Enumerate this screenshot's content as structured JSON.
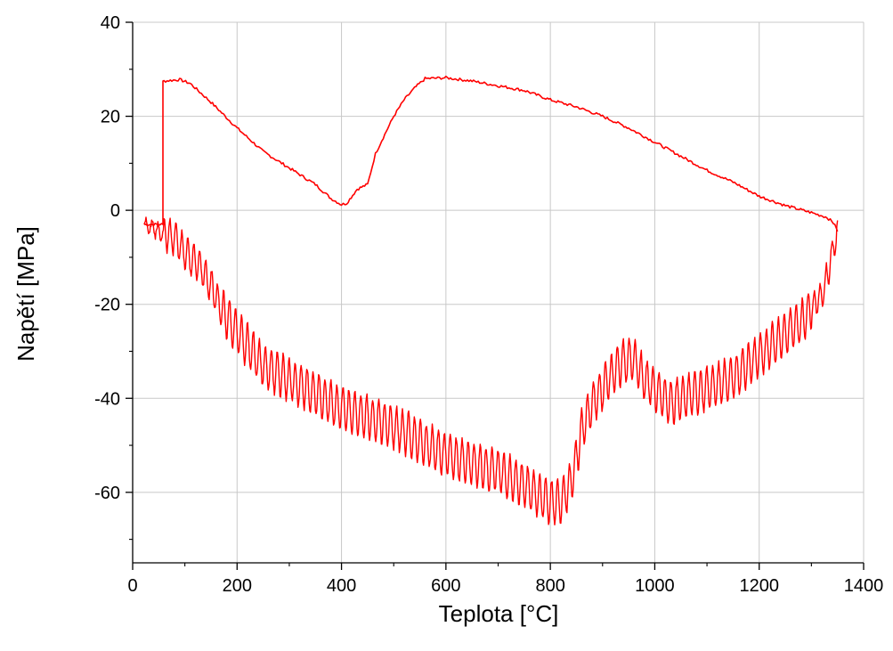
{
  "chart_data": {
    "type": "line",
    "title": "",
    "xlabel": "Teplota [°C]",
    "ylabel": "Napětí [MPa]",
    "xlim": [
      0,
      1400
    ],
    "ylim": [
      -75,
      40
    ],
    "xticks": [
      0,
      200,
      400,
      600,
      800,
      1000,
      1200,
      1400
    ],
    "yticks": [
      -60,
      -40,
      -20,
      0,
      20,
      40
    ],
    "grid": true,
    "legend": "none",
    "series": [
      {
        "color": "#ff0000",
        "upper_branch": {
          "x": [
            22,
            58,
            58,
            60,
            90,
            110,
            150,
            200,
            250,
            300,
            350,
            380,
            400,
            410,
            430,
            450,
            465,
            480,
            500,
            520,
            540,
            560,
            600,
            650,
            700,
            750,
            800,
            850,
            900,
            950,
            1000,
            1050,
            1100,
            1150,
            1200,
            1250,
            1300,
            1330,
            1345,
            1350
          ],
          "y": [
            -3,
            -3,
            27.5,
            27.5,
            27.8,
            27,
            23,
            17.5,
            12.5,
            9,
            5.5,
            2.5,
            1.2,
            1.5,
            4.5,
            5.5,
            12,
            15.5,
            20,
            23.5,
            26,
            28,
            28.2,
            27.5,
            26.5,
            25.5,
            23.5,
            22,
            20,
            17.5,
            14.5,
            11.5,
            8.5,
            6,
            3,
            1,
            -0.5,
            -1.5,
            -3,
            -4.5
          ]
        },
        "lower_branch": {
          "x": [
            1350,
            1340,
            1330,
            1320,
            1300,
            1280,
            1250,
            1200,
            1150,
            1100,
            1050,
            1030,
            1000,
            980,
            960,
            940,
            920,
            900,
            880,
            860,
            840,
            820,
            800,
            780,
            750,
            700,
            650,
            600,
            550,
            500,
            450,
            400,
            380,
            350,
            300,
            250,
            200,
            170,
            150,
            130,
            100,
            80,
            60,
            40,
            22
          ],
          "y": [
            -4.5,
            -9,
            -14,
            -18,
            -21,
            -24,
            -26,
            -31,
            -35.5,
            -38,
            -40,
            -41,
            -38,
            -36,
            -31.5,
            -32,
            -34.5,
            -38,
            -41,
            -47,
            -58,
            -62,
            -62,
            -61,
            -58.5,
            -55.5,
            -54,
            -52,
            -49,
            -46,
            -44,
            -42,
            -41,
            -39,
            -36,
            -33,
            -26,
            -21,
            -16,
            -12,
            -9,
            -6,
            -5,
            -4,
            -3
          ]
        }
      }
    ]
  }
}
